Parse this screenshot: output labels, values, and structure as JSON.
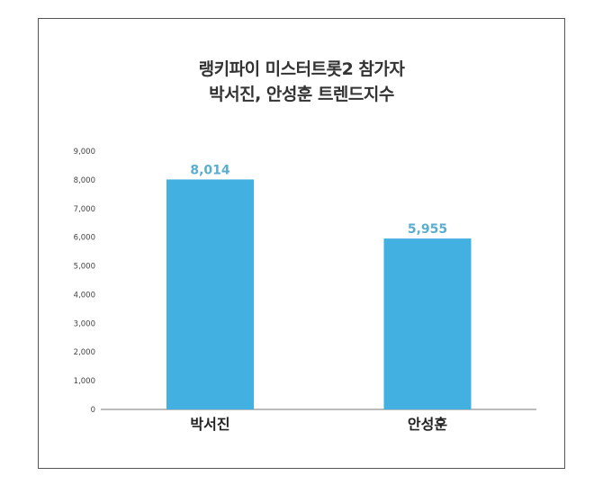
{
  "chart_data": {
    "type": "bar",
    "title": [
      "랭키파이 미스터트롯2 참가자",
      "박서진, 안성훈 트렌드지수"
    ],
    "categories": [
      "박서진",
      "안성훈"
    ],
    "values": [
      8014,
      5955
    ],
    "value_labels": [
      "8,014",
      "5,955"
    ],
    "xlabel": "",
    "ylabel": "",
    "ylim": [
      0,
      9000
    ],
    "yticks": [
      "0",
      "1,000",
      "2,000",
      "3,000",
      "4,000",
      "5,000",
      "6,000",
      "7,000",
      "8,000",
      "9,000"
    ],
    "grid": false,
    "legend": "none",
    "bar_color": "#42b0e0",
    "label_color": "#5aaed0"
  }
}
